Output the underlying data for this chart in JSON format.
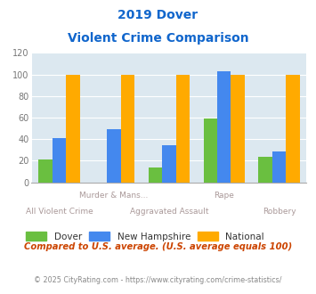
{
  "title_line1": "2019 Dover",
  "title_line2": "Violent Crime Comparison",
  "categories": [
    "All Violent Crime",
    "Murder & Mans...",
    "Aggravated Assault",
    "Rape",
    "Robbery"
  ],
  "dover": [
    21,
    0,
    14,
    59,
    24
  ],
  "new_hampshire": [
    41,
    49,
    34,
    103,
    29
  ],
  "national": [
    100,
    100,
    100,
    100,
    100
  ],
  "colors": {
    "dover": "#6abf40",
    "new_hampshire": "#4488ee",
    "national": "#ffaa00"
  },
  "ylim": [
    0,
    120
  ],
  "yticks": [
    0,
    20,
    40,
    60,
    80,
    100,
    120
  ],
  "bar_width": 0.25,
  "plot_bg": "#dce8f0",
  "title_color": "#1166cc",
  "footer_text": "Compared to U.S. average. (U.S. average equals 100)",
  "footer_color": "#cc4400",
  "copyright_text": "© 2025 CityRating.com - https://www.cityrating.com/crime-statistics/",
  "copyright_color": "#888888",
  "legend_labels": [
    "Dover",
    "New Hampshire",
    "National"
  ],
  "x_label_top_indices": [
    1,
    3
  ],
  "x_label_bottom_indices": [
    0,
    2,
    4
  ],
  "label_color": "#aa9999"
}
